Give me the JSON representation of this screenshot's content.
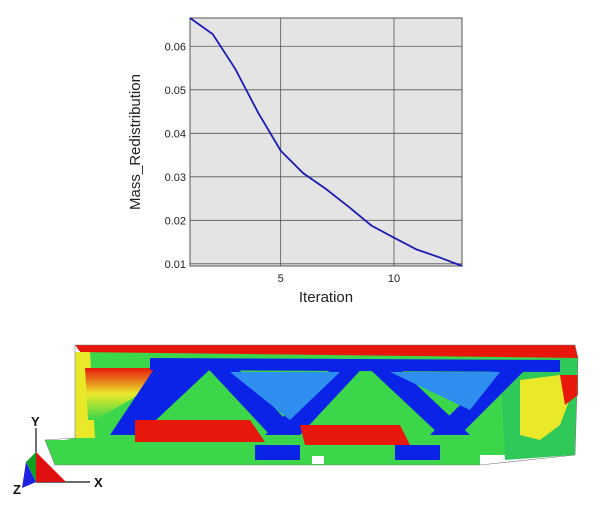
{
  "chart_data": {
    "type": "line",
    "xlabel": "Iteration",
    "ylabel": "Mass_Redistribution",
    "xlim": [
      1,
      13
    ],
    "ylim": [
      0.0095,
      0.0665
    ],
    "x_ticks": [
      5,
      10
    ],
    "y_ticks": [
      0.01,
      0.02,
      0.03,
      0.04,
      0.05,
      0.06
    ],
    "y_tick_labels": [
      "0.01",
      "0.02",
      "0.03",
      "0.04",
      "0.05",
      "0.06"
    ],
    "x_tick_labels": [
      "5",
      "10"
    ],
    "grid": true,
    "series": [
      {
        "color": "#1c1cb0",
        "x": [
          1,
          2,
          3,
          4,
          5,
          6,
          7,
          8,
          9,
          10,
          11,
          12,
          13
        ],
        "y": [
          0.0665,
          0.0628,
          0.0548,
          0.0448,
          0.036,
          0.0308,
          0.0272,
          0.0231,
          0.0188,
          0.016,
          0.0133,
          0.0115,
          0.0095
        ]
      }
    ],
    "plot_background": "#e4e4e4"
  },
  "fe_model": {
    "colors": {
      "red": "#e8170c",
      "green": "#3bd64a",
      "blue": "#0a23e6",
      "light_blue": "#2f8ff0",
      "yellow": "#e9e92a",
      "cyan": "#33d8c8"
    }
  },
  "triad": {
    "y_label": "Y",
    "x_label": "X",
    "z_label": "Z",
    "colors": {
      "x": "#e01010",
      "y": "#10a020",
      "z": "#2020e0"
    }
  }
}
